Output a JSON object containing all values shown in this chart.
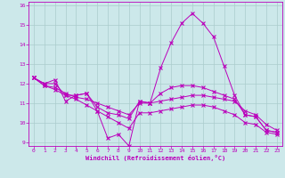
{
  "title": "",
  "xlabel": "Windchill (Refroidissement éolien,°C)",
  "ylabel": "",
  "bg_color": "#cce8ea",
  "grid_color": "#aacccc",
  "line_color": "#bb00bb",
  "xlim": [
    -0.5,
    23.5
  ],
  "ylim": [
    8.8,
    16.2
  ],
  "yticks": [
    9,
    10,
    11,
    12,
    13,
    14,
    15,
    16
  ],
  "xticks": [
    0,
    1,
    2,
    3,
    4,
    5,
    6,
    7,
    8,
    9,
    10,
    11,
    12,
    13,
    14,
    15,
    16,
    17,
    18,
    19,
    20,
    21,
    22,
    23
  ],
  "line1": [
    12.3,
    12.0,
    12.2,
    11.1,
    11.4,
    11.5,
    10.6,
    9.2,
    9.4,
    8.8,
    11.1,
    11.0,
    12.8,
    14.1,
    15.1,
    15.6,
    15.1,
    14.4,
    12.9,
    11.4,
    10.4,
    10.3,
    9.6,
    9.5
  ],
  "line2": [
    12.3,
    12.0,
    12.0,
    11.4,
    11.4,
    11.5,
    10.8,
    10.5,
    10.4,
    10.2,
    11.1,
    11.0,
    11.5,
    11.8,
    11.9,
    11.9,
    11.8,
    11.6,
    11.4,
    11.2,
    10.4,
    10.3,
    9.6,
    9.5
  ],
  "line3": [
    12.3,
    11.9,
    11.8,
    11.5,
    11.3,
    11.2,
    11.0,
    10.8,
    10.6,
    10.4,
    11.0,
    11.0,
    11.1,
    11.2,
    11.3,
    11.4,
    11.4,
    11.3,
    11.2,
    11.1,
    10.6,
    10.4,
    9.9,
    9.6
  ],
  "line4": [
    12.3,
    11.9,
    11.7,
    11.4,
    11.2,
    10.9,
    10.6,
    10.3,
    10.0,
    9.7,
    10.5,
    10.5,
    10.6,
    10.7,
    10.8,
    10.9,
    10.9,
    10.8,
    10.6,
    10.4,
    10.0,
    9.9,
    9.5,
    9.4
  ]
}
